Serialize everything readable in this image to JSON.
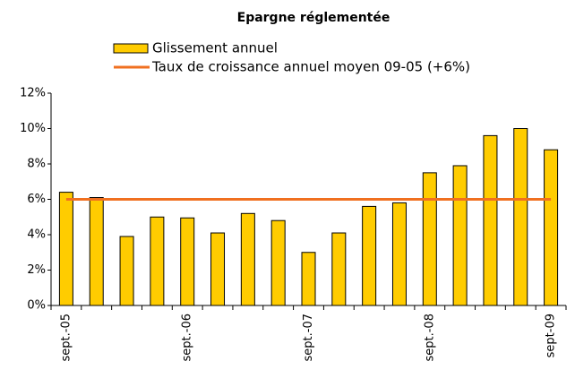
{
  "chart_data": {
    "type": "bar",
    "title": "Epargne réglementée",
    "categories": [
      "sept.-05",
      null,
      null,
      null,
      "sept.-06",
      null,
      null,
      null,
      "sept.-07",
      null,
      null,
      null,
      "sept.-08",
      null,
      null,
      null,
      "sept-09"
    ],
    "series": [
      {
        "name": "Glissement annuel",
        "type": "bar",
        "color": "#FFCC00",
        "values": [
          6.4,
          6.1,
          3.9,
          5.0,
          4.95,
          4.1,
          5.2,
          4.8,
          3.0,
          4.1,
          5.6,
          5.8,
          7.5,
          7.9,
          9.6,
          10.0,
          8.8
        ]
      },
      {
        "name": "Taux de croissance annuel moyen 09-05 (+6%)",
        "type": "line",
        "color": "#F07020",
        "values": [
          6,
          6,
          6,
          6,
          6,
          6,
          6,
          6,
          6,
          6,
          6,
          6,
          6,
          6,
          6,
          6,
          6
        ]
      }
    ],
    "ylim": [
      0,
      12
    ],
    "yticks": [
      {
        "value": 0,
        "label": "0%"
      },
      {
        "value": 2,
        "label": "2%"
      },
      {
        "value": 4,
        "label": "4%"
      },
      {
        "value": 6,
        "label": "6%"
      },
      {
        "value": 8,
        "label": "8%"
      },
      {
        "value": 10,
        "label": "10%"
      },
      {
        "value": 12,
        "label": "12%"
      }
    ]
  }
}
